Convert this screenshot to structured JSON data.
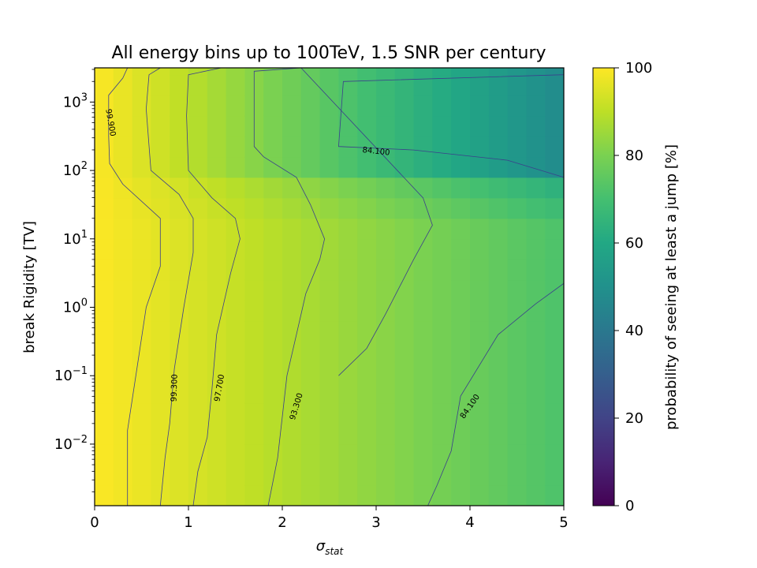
{
  "chart_data": {
    "type": "heatmap",
    "title": "All energy bins up to 100TeV, 1.5 SNR per century",
    "xlabel": "σ_stat",
    "ylabel": "break Rigidity [TV]",
    "colorbar_label": "probability of seeing at least a jump [%]",
    "colormap": "viridis",
    "xlim": [
      0,
      5
    ],
    "ylim_log10": [
      -2.9,
      3.5
    ],
    "y_scale": "log",
    "grid": false,
    "x_ticks": [
      0,
      1,
      2,
      3,
      4,
      5
    ],
    "y_ticks": [
      {
        "exp": -2,
        "label": "−2"
      },
      {
        "exp": -1,
        "label": "−1"
      },
      {
        "exp": 0,
        "label": "0"
      },
      {
        "exp": 1,
        "label": "1"
      },
      {
        "exp": 2,
        "label": "2"
      },
      {
        "exp": 3,
        "label": "3"
      }
    ],
    "y_tick_base": "10",
    "colorbar_range": [
      0,
      100
    ],
    "colorbar_ticks": [
      0,
      20,
      40,
      60,
      80,
      100
    ],
    "heatmap_model": {
      "x_bin_width": 0.2,
      "y_bin_width_log10": 0.3,
      "drop_per_sigma_low_rigidity": 5.7,
      "drop_per_sigma_high_rigidity": 10.5,
      "high_rigidity_threshold_TV": 100
    },
    "contours": [
      {
        "level": 99.9,
        "label": "99.900",
        "points": [
          [
            0.35,
            3.5
          ],
          [
            0.3,
            3.35
          ],
          [
            0.15,
            3.1
          ],
          [
            0.15,
            2.5
          ],
          [
            0.16,
            2.1
          ],
          [
            0.3,
            1.8
          ],
          [
            0.7,
            1.3
          ],
          [
            0.7,
            0.6
          ],
          [
            0.55,
            0.0
          ],
          [
            0.45,
            -0.9
          ],
          [
            0.35,
            -1.8
          ],
          [
            0.35,
            -2.9
          ]
        ]
      },
      {
        "level": 99.3,
        "label": "99.300",
        "points": [
          [
            0.7,
            3.5
          ],
          [
            0.58,
            3.4
          ],
          [
            0.55,
            2.9
          ],
          [
            0.6,
            2.0
          ],
          [
            0.9,
            1.65
          ],
          [
            1.05,
            1.3
          ],
          [
            1.05,
            0.8
          ],
          [
            0.95,
            0.0
          ],
          [
            0.85,
            -0.9
          ],
          [
            0.8,
            -1.7
          ],
          [
            0.75,
            -2.2
          ],
          [
            0.7,
            -2.9
          ]
        ]
      },
      {
        "level": 97.7,
        "label": "97.700",
        "points": [
          [
            1.35,
            3.5
          ],
          [
            1.0,
            3.4
          ],
          [
            0.98,
            2.8
          ],
          [
            1.0,
            2.0
          ],
          [
            1.25,
            1.6
          ],
          [
            1.5,
            1.3
          ],
          [
            1.55,
            1.0
          ],
          [
            1.45,
            0.5
          ],
          [
            1.3,
            -0.4
          ],
          [
            1.25,
            -1.2
          ],
          [
            1.2,
            -1.9
          ],
          [
            1.1,
            -2.4
          ],
          [
            1.05,
            -2.9
          ]
        ]
      },
      {
        "level": 93.3,
        "label": "93.300",
        "points": [
          [
            2.2,
            3.5
          ],
          [
            1.7,
            3.45
          ],
          [
            1.7,
            2.35
          ],
          [
            1.8,
            2.2
          ],
          [
            2.15,
            1.9
          ],
          [
            2.3,
            1.5
          ],
          [
            2.45,
            1.0
          ],
          [
            2.4,
            0.7
          ],
          [
            2.25,
            0.2
          ],
          [
            2.15,
            -0.4
          ],
          [
            2.05,
            -1.0
          ],
          [
            2.0,
            -1.6
          ],
          [
            1.95,
            -2.2
          ],
          [
            1.85,
            -2.9
          ]
        ]
      },
      {
        "level": 84.1,
        "label": "84.100",
        "points": [
          [
            5.0,
            3.5
          ],
          [
            5.0,
            3.4
          ],
          [
            2.65,
            3.3
          ],
          [
            2.6,
            2.35
          ],
          [
            3.4,
            2.3
          ],
          [
            4.4,
            2.15
          ],
          [
            5.0,
            1.9
          ]
        ]
      },
      {
        "level": 84.1,
        "label": "84.100",
        "points": [
          [
            5.0,
            0.35
          ],
          [
            4.7,
            0.05
          ],
          [
            4.3,
            -0.4
          ],
          [
            3.9,
            -1.3
          ],
          [
            3.8,
            -2.1
          ],
          [
            3.65,
            -2.6
          ],
          [
            3.55,
            -2.9
          ]
        ]
      },
      {
        "level": 93.3,
        "label": "",
        "points": [
          [
            2.2,
            3.5
          ],
          [
            3.5,
            1.6
          ],
          [
            3.6,
            1.2
          ],
          [
            3.4,
            0.7
          ],
          [
            3.1,
            -0.1
          ],
          [
            2.9,
            -0.6
          ],
          [
            2.6,
            -1.0
          ]
        ]
      }
    ],
    "contour_labels": [
      {
        "label": "99.900",
        "x": 0.17,
        "y_log10": 2.7,
        "angle": 80
      },
      {
        "label": "99.300",
        "x": 0.85,
        "y_log10": -1.18,
        "angle": -88
      },
      {
        "label": "97.700",
        "x": 1.33,
        "y_log10": -1.18,
        "angle": -80
      },
      {
        "label": "93.300",
        "x": 2.15,
        "y_log10": -1.45,
        "angle": -73
      },
      {
        "label": "84.100",
        "x": 3.0,
        "y_log10": 2.28,
        "angle": 6
      },
      {
        "label": "84.100",
        "x": 4.0,
        "y_log10": -1.45,
        "angle": -55
      }
    ]
  }
}
